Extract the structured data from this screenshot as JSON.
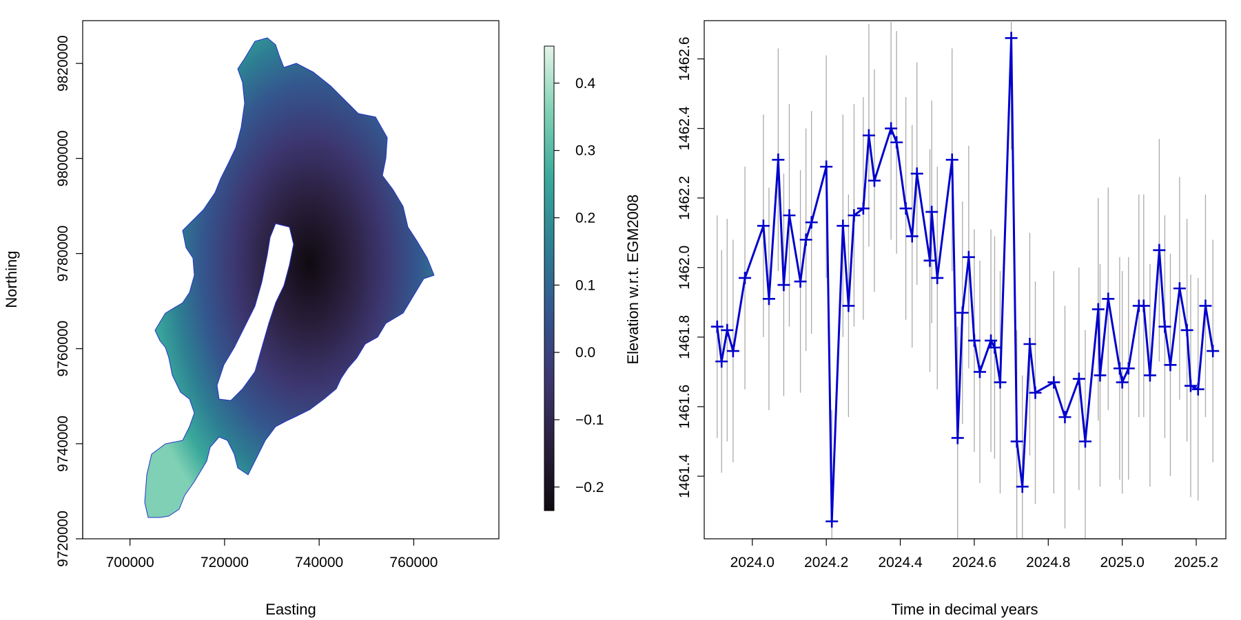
{
  "colors": {
    "line": "#0000cc",
    "raw_points": "#aaaaaa",
    "outline": "#2233cc",
    "colorbar_stops": [
      "#e4f4e9",
      "#7fd0b4",
      "#3aa89b",
      "#2d7f93",
      "#34568e",
      "#3d3771",
      "#2a1f3d",
      "#0f0a10"
    ]
  },
  "chart_data": [
    {
      "type": "heatmap",
      "title": "",
      "xlabel": "Easting",
      "ylabel": "Northing",
      "xlim": [
        690000,
        778000
      ],
      "ylim": [
        9720000,
        9829000
      ],
      "x_ticks": [
        "700000",
        "720000",
        "740000",
        "760000"
      ],
      "y_ticks": [
        "9720000",
        "9740000",
        "9760000",
        "9780000",
        "9800000",
        "9820000"
      ],
      "colorbar": {
        "range": [
          -0.235,
          0.455
        ],
        "ticks": [
          "−0.2",
          "−0.1",
          "0.0",
          "0.1",
          "0.2",
          "0.3",
          "0.4"
        ]
      }
    },
    {
      "type": "line",
      "title": "",
      "xlabel": "Time in decimal years",
      "ylabel": "Elevation w.r.t. EGM2008",
      "xlim": [
        2023.87,
        2025.28
      ],
      "ylim": [
        1461.22,
        1462.71
      ],
      "x_ticks": [
        "2024.0",
        "2024.2",
        "2024.4",
        "2024.6",
        "2024.8",
        "2025.0",
        "2025.2"
      ],
      "y_ticks": [
        "1461.4",
        "1461.6",
        "1461.8",
        "1462.0",
        "1462.2",
        "1462.4",
        "1462.6"
      ],
      "x": [
        2023.905,
        2023.917,
        2023.932,
        2023.948,
        2023.98,
        2024.03,
        2024.045,
        2024.07,
        2024.085,
        2024.1,
        2024.13,
        2024.145,
        2024.16,
        2024.2,
        2024.215,
        2024.245,
        2024.26,
        2024.275,
        2024.3,
        2024.315,
        2024.33,
        2024.375,
        2024.39,
        2024.415,
        2024.432,
        2024.445,
        2024.48,
        2024.485,
        2024.5,
        2024.54,
        2024.555,
        2024.568,
        2024.585,
        2024.6,
        2024.615,
        2024.645,
        2024.655,
        2024.67,
        2024.7,
        2024.715,
        2024.73,
        2024.75,
        2024.765,
        2024.815,
        2024.845,
        2024.883,
        2024.9,
        2024.935,
        2024.94,
        2024.962,
        2024.993,
        2025.0,
        2025.017,
        2025.045,
        2025.058,
        2025.075,
        2025.1,
        2025.115,
        2025.13,
        2025.155,
        2025.175,
        2025.185,
        2025.205,
        2025.225,
        2025.245
      ],
      "y": [
        1461.83,
        1461.73,
        1461.82,
        1461.76,
        1461.97,
        1462.12,
        1461.91,
        1462.31,
        1461.95,
        1462.15,
        1461.96,
        1462.08,
        1462.13,
        1462.29,
        1461.27,
        1462.12,
        1461.89,
        1462.15,
        1462.17,
        1462.38,
        1462.25,
        1462.4,
        1462.36,
        1462.17,
        1462.09,
        1462.27,
        1462.02,
        1462.16,
        1461.97,
        1462.31,
        1461.51,
        1461.87,
        1462.03,
        1461.79,
        1461.7,
        1461.79,
        1461.77,
        1461.67,
        1462.66,
        1461.5,
        1461.37,
        1461.78,
        1461.64,
        1461.67,
        1461.57,
        1461.68,
        1461.5,
        1461.88,
        1461.69,
        1461.91,
        1461.71,
        1461.67,
        1461.71,
        1461.89,
        1461.89,
        1461.69,
        1462.05,
        1461.83,
        1461.72,
        1461.94,
        1461.82,
        1461.66,
        1461.65,
        1461.89,
        1461.76
      ]
    }
  ]
}
